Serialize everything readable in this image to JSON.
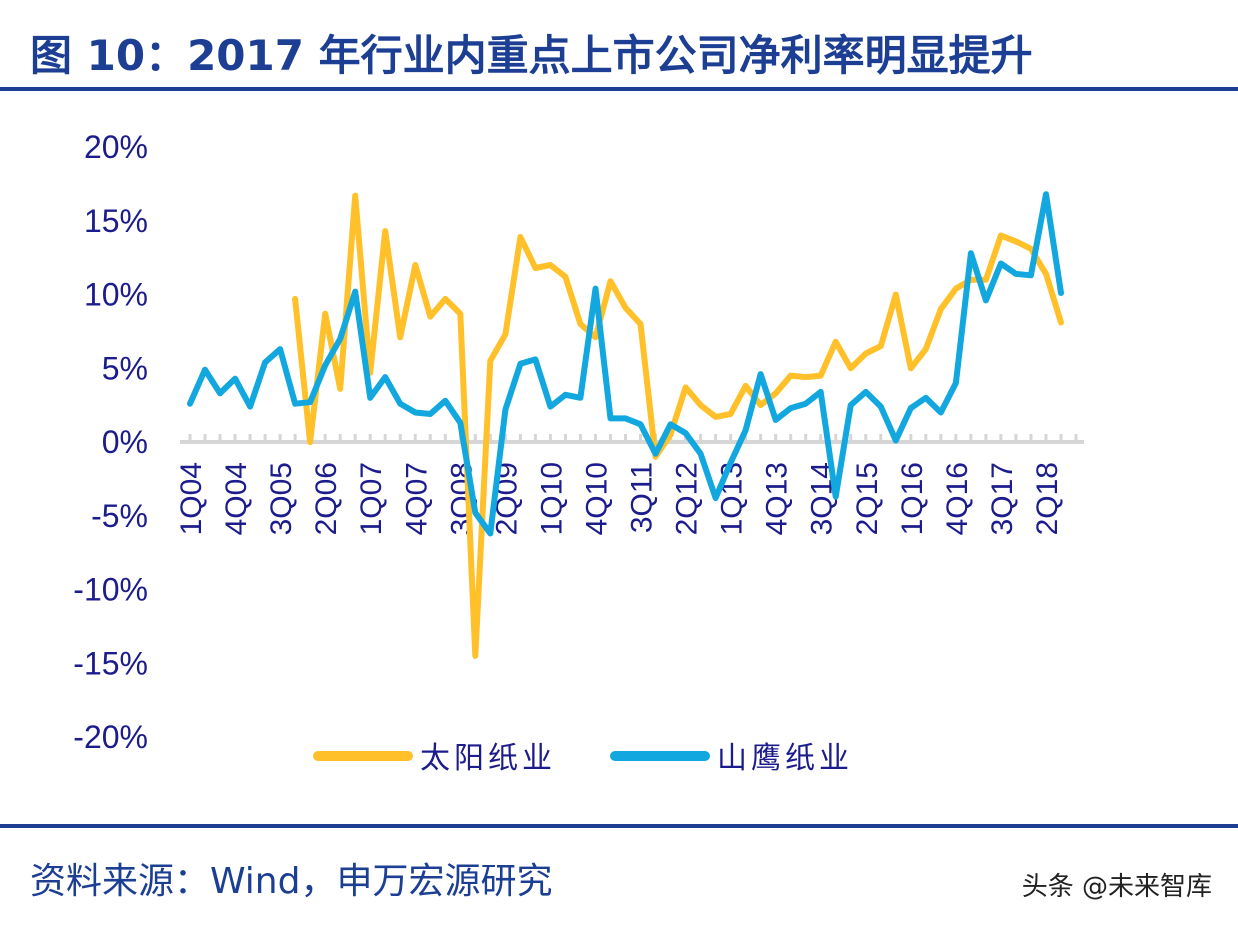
{
  "header": {
    "title": "图 10：2017 年行业内重点上市公司净利率明显提升"
  },
  "footer": {
    "source": "资料来源：Wind，申万宏源研究",
    "watermark": "头条 @未来智库"
  },
  "chart_data": {
    "type": "line",
    "title": "",
    "xlabel": "",
    "ylabel": "",
    "ylim": [
      -0.2,
      0.2
    ],
    "yticks": [
      "20%",
      "15%",
      "10%",
      "5%",
      "0%",
      "-5%",
      "-10%",
      "-15%",
      "-20%"
    ],
    "x_tick_labels": [
      "1Q04",
      "4Q04",
      "3Q05",
      "2Q06",
      "1Q07",
      "4Q07",
      "3Q08",
      "2Q09",
      "1Q10",
      "4Q10",
      "3Q11",
      "2Q12",
      "1Q13",
      "4Q13",
      "3Q14",
      "2Q15",
      "1Q16",
      "4Q16",
      "3Q17",
      "2Q18"
    ],
    "legend_position": "bottom",
    "grid": false,
    "x": [
      "1Q04",
      "2Q04",
      "3Q04",
      "4Q04",
      "1Q05",
      "2Q05",
      "3Q05",
      "4Q05",
      "1Q06",
      "2Q06",
      "3Q06",
      "4Q06",
      "1Q07",
      "2Q07",
      "3Q07",
      "4Q07",
      "1Q08",
      "2Q08",
      "3Q08",
      "4Q08",
      "1Q09",
      "2Q09",
      "3Q09",
      "4Q09",
      "1Q10",
      "2Q10",
      "3Q10",
      "4Q10",
      "1Q11",
      "2Q11",
      "3Q11",
      "4Q11",
      "1Q12",
      "2Q12",
      "3Q12",
      "4Q12",
      "1Q13",
      "2Q13",
      "3Q13",
      "4Q13",
      "1Q14",
      "2Q14",
      "3Q14",
      "4Q14",
      "1Q15",
      "2Q15",
      "3Q15",
      "4Q15",
      "1Q16",
      "2Q16",
      "3Q16",
      "4Q16",
      "1Q17",
      "2Q17",
      "3Q17",
      "4Q17",
      "1Q18",
      "2Q18",
      "3Q18",
      "4Q18"
    ],
    "series": [
      {
        "name": "太阳纸业",
        "color": "#ffc02a",
        "values": [
          null,
          null,
          null,
          null,
          null,
          null,
          null,
          0.097,
          0.0,
          0.087,
          0.036,
          0.167,
          0.047,
          0.143,
          0.071,
          0.12,
          0.085,
          0.097,
          0.087,
          -0.145,
          0.055,
          0.073,
          0.139,
          0.118,
          0.12,
          0.112,
          0.08,
          0.071,
          0.109,
          0.091,
          0.08,
          -0.01,
          0.005,
          0.037,
          0.025,
          0.017,
          0.019,
          0.038,
          0.025,
          0.033,
          0.045,
          0.044,
          0.045,
          0.068,
          0.05,
          0.06,
          0.065,
          0.1,
          0.05,
          0.063,
          0.09,
          0.104,
          0.11,
          0.11,
          0.14,
          0.136,
          0.131,
          0.114,
          0.081,
          null
        ]
      },
      {
        "name": "山鹰纸业",
        "color": "#12a8df",
        "values": [
          0.026,
          0.049,
          0.033,
          0.043,
          0.024,
          0.054,
          0.063,
          0.026,
          0.027,
          0.052,
          0.07,
          0.102,
          0.03,
          0.044,
          0.026,
          0.02,
          0.019,
          0.028,
          0.013,
          -0.048,
          -0.062,
          0.022,
          0.053,
          0.056,
          0.024,
          0.032,
          0.03,
          0.104,
          0.016,
          0.016,
          0.012,
          -0.008,
          0.012,
          0.006,
          -0.008,
          -0.038,
          -0.014,
          0.008,
          0.046,
          0.015,
          0.023,
          0.026,
          0.034,
          -0.037,
          0.025,
          0.034,
          0.024,
          0.001,
          0.023,
          0.03,
          0.02,
          0.04,
          0.128,
          0.096,
          0.121,
          0.114,
          0.113,
          0.168,
          0.101,
          null
        ]
      }
    ]
  }
}
